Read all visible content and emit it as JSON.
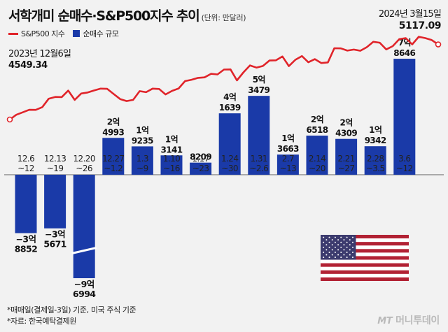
{
  "header": {
    "title": "서학개미 순매수·S&P500지수 추이",
    "unit": "(단위: 만달러)"
  },
  "legend": {
    "line_label": "S&P500 지수",
    "bar_label": "순매수 규모"
  },
  "annotations": {
    "start_date": "2023년 12월6일",
    "start_value": "4549.34",
    "end_date": "2024년 3월15일",
    "end_value": "5117.09"
  },
  "footnote": {
    "line1": "*매매일(결제일-3일) 기준, 미국 주식 기준",
    "line2": "*자료: 한국예탁결제원"
  },
  "brand": {
    "mt": "MT",
    "name": "머니투데이"
  },
  "colors": {
    "line": "#e0242a",
    "bar": "#1a3aa8",
    "background": "#f2f2f2"
  },
  "chart_data": [
    {
      "type": "bar",
      "title": "순매수 규모",
      "unit": "만달러",
      "categories": [
        "12.6~12",
        "12.13~19",
        "12.20~26",
        "12.27~1.2",
        "1.3~9",
        "1.10~16",
        "1.17~23",
        "1.24~30",
        "1.31~2.6",
        "2.7~13",
        "2.14~20",
        "2.21~27",
        "2.28~3.5",
        "3.6~12"
      ],
      "category_lines": [
        [
          "12.6",
          "~12"
        ],
        [
          "12.13",
          "~19"
        ],
        [
          "12.20",
          "~26"
        ],
        [
          "12.27",
          "~1.2"
        ],
        [
          "1.3",
          "~9"
        ],
        [
          "1.10",
          "~16"
        ],
        [
          "1.17",
          "~23"
        ],
        [
          "1.24",
          "~30"
        ],
        [
          "1.31",
          "~2.6"
        ],
        [
          "2.7",
          "~13"
        ],
        [
          "2.14",
          "~20"
        ],
        [
          "2.21",
          "~27"
        ],
        [
          "2.28",
          "~3.5"
        ],
        [
          "3.6",
          "~12"
        ]
      ],
      "values": [
        -38852,
        -35671,
        -96994,
        24993,
        19235,
        13141,
        8209,
        41639,
        53479,
        13663,
        26518,
        24309,
        19342,
        78646
      ],
      "value_labels": [
        [
          "−3억",
          "8852"
        ],
        [
          "−3억",
          "5671"
        ],
        [
          "−9억",
          "6994"
        ],
        [
          "2억",
          "4993"
        ],
        [
          "1억",
          "9235"
        ],
        [
          "1억",
          "3141"
        ],
        [
          "",
          "8209"
        ],
        [
          "4억",
          "1639"
        ],
        [
          "5억",
          "3479"
        ],
        [
          "1억",
          "3663"
        ],
        [
          "2억",
          "6518"
        ],
        [
          "2억",
          "4309"
        ],
        [
          "1억",
          "9342"
        ],
        [
          "7억",
          "8646"
        ]
      ],
      "truncated": [
        false,
        false,
        true,
        false,
        false,
        false,
        false,
        false,
        false,
        false,
        false,
        false,
        false,
        false
      ]
    },
    {
      "type": "line",
      "title": "S&P500 지수",
      "start": {
        "label": "2023년 12월6일",
        "value": 4549.34
      },
      "end": {
        "label": "2024년 3월15일",
        "value": 5117.09
      },
      "values": [
        4549.34,
        4585,
        4604,
        4623,
        4622,
        4643,
        4707,
        4720,
        4719,
        4768,
        4698,
        4746,
        4754,
        4769,
        4783,
        4781,
        4742,
        4704,
        4689,
        4698,
        4764,
        4756,
        4783,
        4780,
        4739,
        4766,
        4784,
        4840,
        4850,
        4864,
        4868,
        4895,
        4890,
        4927,
        4928,
        4845,
        4906,
        4958,
        4942,
        4954,
        4995,
        4997,
        5026,
        4953,
        5001,
        5029,
        4982,
        5006,
        4976,
        4981,
        5088,
        5087,
        5070,
        5078,
        5069,
        5096,
        5137,
        5130,
        5079,
        5104,
        5157,
        5165,
        5117,
        5175,
        5165,
        5150,
        5117.09
      ]
    }
  ]
}
